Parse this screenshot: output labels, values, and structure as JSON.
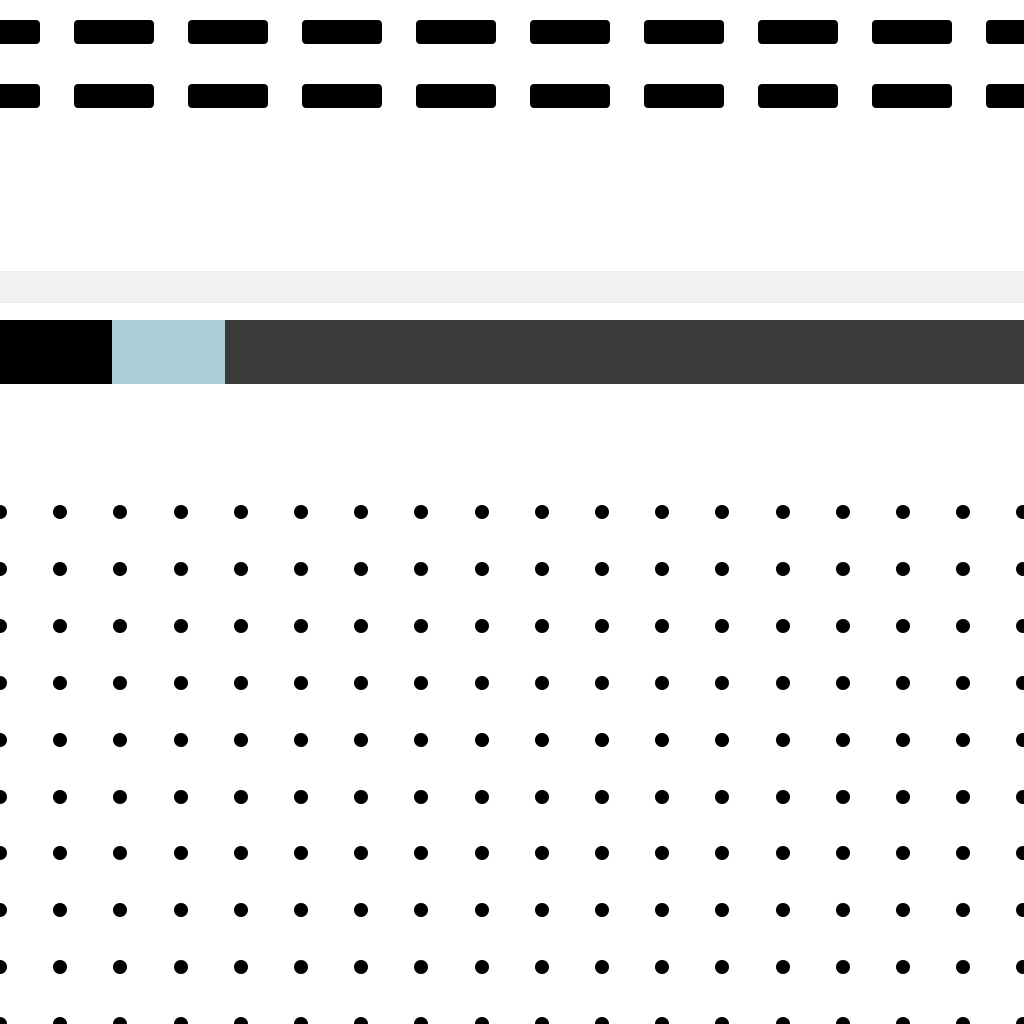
{
  "colors": {
    "background": "#ffffff",
    "dash": "#000000",
    "band": "#f2f2f2",
    "segment_black": "#000000",
    "segment_light_blue": "#abcdd6",
    "segment_dark_gray": "#3c3c3b",
    "dot": "#000000"
  },
  "patterns": {
    "dash_rows": 2,
    "dashes_per_row": 10,
    "dot_rows": 10,
    "dot_columns": 18
  }
}
